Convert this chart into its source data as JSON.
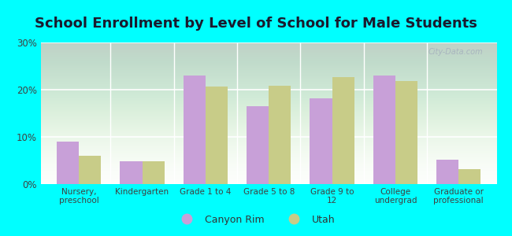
{
  "title": "School Enrollment by Level of School for Male Students",
  "categories": [
    "Nursery,\npreschool",
    "Kindergarten",
    "Grade 1 to 4",
    "Grade 5 to 8",
    "Grade 9 to\n12",
    "College\nundergrad",
    "Graduate or\nprofessional"
  ],
  "canyon_rim": [
    9.0,
    4.8,
    23.0,
    16.5,
    18.2,
    23.0,
    5.2
  ],
  "utah": [
    6.0,
    4.9,
    20.7,
    20.9,
    22.7,
    21.8,
    3.2
  ],
  "canyon_rim_color": "#c8a0d8",
  "utah_color": "#c8cc88",
  "background_color": "#00ffff",
  "plot_bg_top": "#ffffff",
  "plot_bg_bottom": "#d8ecd0",
  "ylim": [
    0,
    30
  ],
  "yticks": [
    0,
    10,
    20,
    30
  ],
  "ytick_labels": [
    "0%",
    "10%",
    "20%",
    "30%"
  ],
  "legend_labels": [
    "Canyon Rim",
    "Utah"
  ],
  "title_fontsize": 13,
  "bar_width": 0.35
}
